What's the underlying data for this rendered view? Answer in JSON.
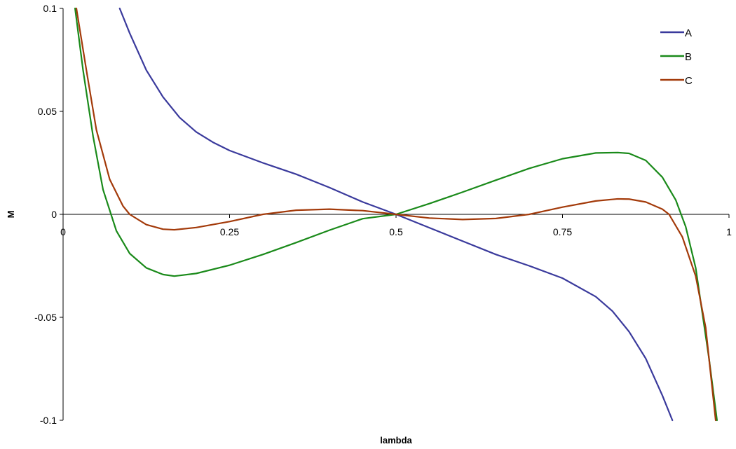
{
  "chart_data": {
    "type": "line",
    "xlabel": "lambda",
    "ylabel": "M",
    "xlim": [
      0,
      1
    ],
    "ylim": [
      -0.1,
      0.1
    ],
    "x_ticks": [
      0,
      0.25,
      0.5,
      0.75,
      1
    ],
    "x_tick_labels": [
      "0",
      "0.25",
      "0.5",
      "0.75",
      "1"
    ],
    "y_ticks": [
      -0.1,
      -0.05,
      0,
      0.05,
      0.1
    ],
    "y_tick_labels": [
      "-0.1",
      "-0.05",
      "0",
      "0.05",
      "0.1"
    ],
    "legend_position": "top-right",
    "series": [
      {
        "name": "A",
        "color": "#3a3a9c",
        "x": [
          0.085,
          0.1,
          0.125,
          0.15,
          0.175,
          0.2,
          0.225,
          0.25,
          0.3,
          0.35,
          0.4,
          0.45,
          0.5,
          0.55,
          0.6,
          0.65,
          0.7,
          0.75,
          0.8,
          0.825,
          0.85,
          0.875,
          0.9,
          0.915
        ],
        "y": [
          0.1,
          0.088,
          0.07,
          0.057,
          0.047,
          0.04,
          0.035,
          0.031,
          0.025,
          0.0195,
          0.013,
          0.006,
          0,
          -0.0065,
          -0.013,
          -0.0195,
          -0.025,
          -0.031,
          -0.04,
          -0.047,
          -0.057,
          -0.07,
          -0.088,
          -0.1
        ]
      },
      {
        "name": "B",
        "color": "#1a8a1a",
        "x": [
          0.018,
          0.03,
          0.045,
          0.06,
          0.08,
          0.1,
          0.125,
          0.15,
          0.167,
          0.2,
          0.25,
          0.3,
          0.35,
          0.4,
          0.45,
          0.5,
          0.55,
          0.6,
          0.65,
          0.7,
          0.75,
          0.8,
          0.833,
          0.85,
          0.875,
          0.9,
          0.92,
          0.935,
          0.95,
          0.97,
          0.982
        ],
        "y": [
          0.1,
          0.07,
          0.038,
          0.012,
          -0.008,
          -0.019,
          -0.026,
          -0.0292,
          -0.03,
          -0.0287,
          -0.0247,
          -0.0195,
          -0.0137,
          -0.0077,
          -0.0021,
          0,
          0.0052,
          0.0108,
          0.0166,
          0.0223,
          0.027,
          0.0298,
          0.03,
          0.0296,
          0.0262,
          0.018,
          0.007,
          -0.006,
          -0.026,
          -0.07,
          -0.1
        ]
      },
      {
        "name": "C",
        "color": "#a33a0a",
        "x": [
          0.02,
          0.035,
          0.05,
          0.07,
          0.09,
          0.1,
          0.125,
          0.15,
          0.167,
          0.2,
          0.25,
          0.3,
          0.35,
          0.4,
          0.45,
          0.5,
          0.55,
          0.6,
          0.65,
          0.7,
          0.75,
          0.8,
          0.833,
          0.85,
          0.875,
          0.9,
          0.91,
          0.93,
          0.95,
          0.965,
          0.98
        ],
        "y": [
          0.1,
          0.07,
          0.041,
          0.017,
          0.004,
          0,
          -0.005,
          -0.0072,
          -0.0075,
          -0.0064,
          -0.0035,
          0,
          0.002,
          0.0025,
          0.0018,
          0,
          -0.0018,
          -0.0025,
          -0.002,
          0,
          0.0035,
          0.0065,
          0.0075,
          0.0074,
          0.006,
          0.0025,
          0,
          -0.011,
          -0.03,
          -0.055,
          -0.1
        ]
      }
    ]
  }
}
